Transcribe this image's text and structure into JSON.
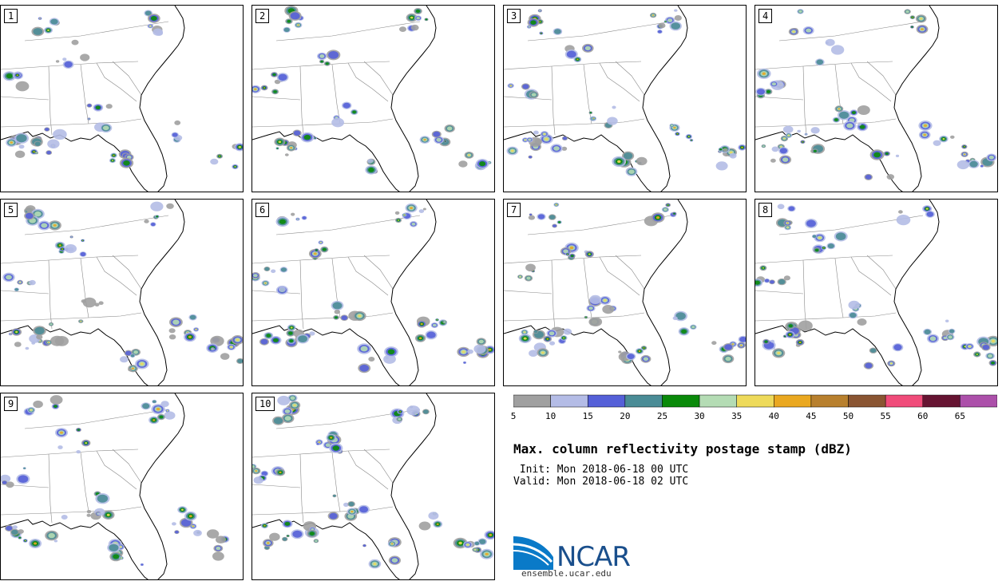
{
  "panels": [
    {
      "label": "1"
    },
    {
      "label": "2"
    },
    {
      "label": "3"
    },
    {
      "label": "4"
    },
    {
      "label": "5"
    },
    {
      "label": "6"
    },
    {
      "label": "7"
    },
    {
      "label": "8"
    },
    {
      "label": "9"
    },
    {
      "label": "10"
    }
  ],
  "colorbar": {
    "colors": [
      "#a0a0a0",
      "#b4bce6",
      "#5560d8",
      "#4a8c96",
      "#0a8a0a",
      "#b4dcb4",
      "#eeda5a",
      "#eaa820",
      "#b8802e",
      "#8a5532",
      "#f04c7a",
      "#661432",
      "#ac50aa"
    ],
    "ticks": [
      "5",
      "10",
      "15",
      "20",
      "25",
      "30",
      "35",
      "40",
      "45",
      "50",
      "55",
      "60",
      "65"
    ]
  },
  "title": "Max. column reflectivity postage stamp (dBZ)",
  "init_line": " Init: Mon 2018-06-18 00 UTC",
  "valid_line": "Valid: Mon 2018-06-18 02 UTC",
  "logo": {
    "name": "NCAR",
    "url": "ensemble.ucar.edu"
  }
}
